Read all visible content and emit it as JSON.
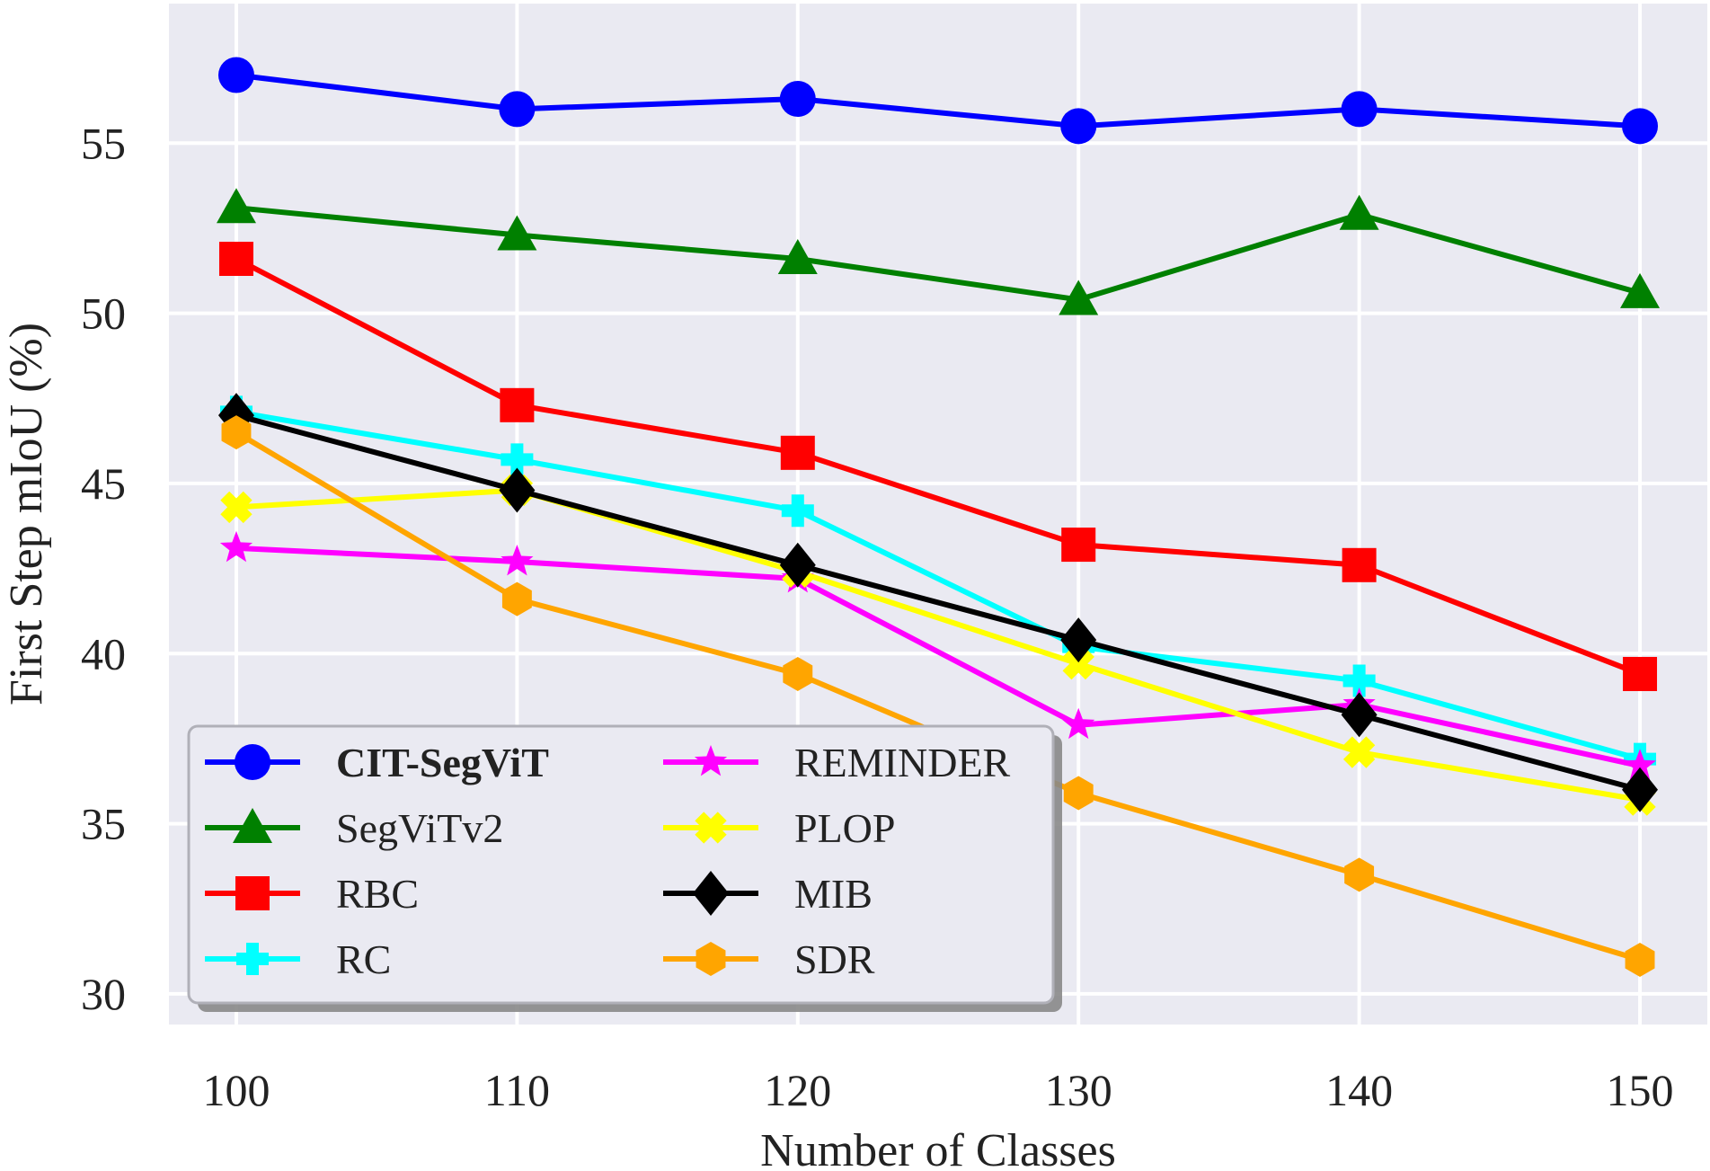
{
  "chart_data": {
    "type": "line",
    "title": "",
    "xlabel": "Number of Classes",
    "ylabel": "First Step mIoU (%)",
    "x": [
      100,
      110,
      120,
      130,
      140,
      150
    ],
    "x_ticks": [
      "100",
      "110",
      "120",
      "130",
      "140",
      "150"
    ],
    "y_ticks": [
      "30",
      "35",
      "40",
      "45",
      "50",
      "55"
    ],
    "xlim": [
      97.6,
      152.4
    ],
    "ylim": [
      29.1,
      59.1
    ],
    "grid": true,
    "legend_position": "lower-left",
    "series": [
      {
        "name": "CIT-SegViT",
        "color": "#0000ff",
        "marker": "circle",
        "bold": true,
        "values": [
          57.0,
          56.0,
          56.3,
          55.5,
          56.0,
          55.5
        ]
      },
      {
        "name": "SegViTv2",
        "color": "#008000",
        "marker": "triangle",
        "bold": false,
        "values": [
          53.1,
          52.3,
          51.6,
          50.4,
          52.9,
          50.6
        ]
      },
      {
        "name": "RBC",
        "color": "#ff0000",
        "marker": "square",
        "bold": false,
        "values": [
          51.6,
          47.3,
          45.9,
          43.2,
          42.6,
          39.4
        ]
      },
      {
        "name": "RC",
        "color": "#00ffff",
        "marker": "plus",
        "bold": false,
        "values": [
          47.1,
          45.7,
          44.2,
          40.2,
          39.2,
          36.9
        ]
      },
      {
        "name": "REMINDER",
        "color": "#ff00ff",
        "marker": "star",
        "bold": false,
        "values": [
          43.1,
          42.7,
          42.2,
          37.9,
          38.5,
          36.7
        ]
      },
      {
        "name": "PLOP",
        "color": "#ffff00",
        "marker": "x",
        "bold": false,
        "values": [
          44.3,
          44.8,
          42.4,
          39.7,
          37.1,
          35.7
        ]
      },
      {
        "name": "MIB",
        "color": "#000000",
        "marker": "diamond",
        "bold": false,
        "values": [
          47.0,
          44.8,
          42.6,
          40.4,
          38.2,
          36.0
        ]
      },
      {
        "name": "SDR",
        "color": "#ffa500",
        "marker": "hexagon",
        "bold": false,
        "values": [
          46.5,
          41.6,
          39.4,
          35.9,
          33.5,
          31.0
        ]
      }
    ]
  }
}
